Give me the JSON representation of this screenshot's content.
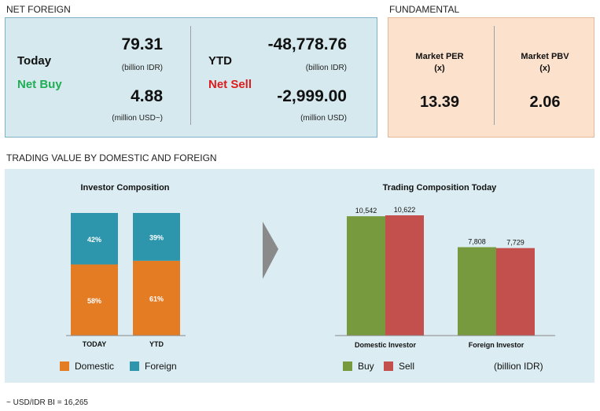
{
  "net_foreign": {
    "section_title": "NET FOREIGN",
    "today": {
      "label": "Today",
      "action": "Net Buy",
      "value_idr": "79.31",
      "unit_idr": "(billion IDR)",
      "value_usd": "4.88",
      "unit_usd": "(million USD~)"
    },
    "ytd": {
      "label": "YTD",
      "action": "Net Sell",
      "value_idr": "-48,778.76",
      "unit_idr": "(billion IDR)",
      "value_usd": "-2,999.00",
      "unit_usd": "(million USD)"
    }
  },
  "fundamental": {
    "section_title": "FUNDAMENTAL",
    "per": {
      "label": "Market PER",
      "unit": "(x)",
      "value": "13.39"
    },
    "pbv": {
      "label": "Market PBV",
      "unit": "(x)",
      "value": "2.06"
    }
  },
  "trading": {
    "section_title": "TRADING VALUE BY DOMESTIC AND FOREIGN",
    "unit_note": "(billion IDR)"
  },
  "footnote": "~ USD/IDR BI = 16,265",
  "colors": {
    "domestic": "#e47c24",
    "foreign": "#2d96ad",
    "buy": "#769a3d",
    "sell": "#c4504d",
    "net_buy_text": "#1fae55",
    "net_sell_text": "#e01b1b"
  },
  "chart_data": [
    {
      "type": "bar",
      "stacked": true,
      "title": "Investor Composition",
      "categories": [
        "TODAY",
        "YTD"
      ],
      "series": [
        {
          "name": "Domestic",
          "values": [
            58,
            61
          ],
          "labels": [
            "58%",
            "61%"
          ],
          "color": "#e47c24"
        },
        {
          "name": "Foreign",
          "values": [
            42,
            39
          ],
          "labels": [
            "42%",
            "39%"
          ],
          "color": "#2d96ad"
        }
      ],
      "ylim": [
        0,
        100
      ],
      "legend": "bottom"
    },
    {
      "type": "bar",
      "title": "Trading Composition Today",
      "categories": [
        "Domestic Investor",
        "Foreign Investor"
      ],
      "series": [
        {
          "name": "Buy",
          "values": [
            10542,
            7808
          ],
          "labels": [
            "10,542",
            "7,808"
          ],
          "color": "#769a3d"
        },
        {
          "name": "Sell",
          "values": [
            10622,
            7729
          ],
          "labels": [
            "10,622",
            "7,729"
          ],
          "color": "#c4504d"
        }
      ],
      "ylim": [
        0,
        11000
      ],
      "legend": "bottom"
    }
  ]
}
